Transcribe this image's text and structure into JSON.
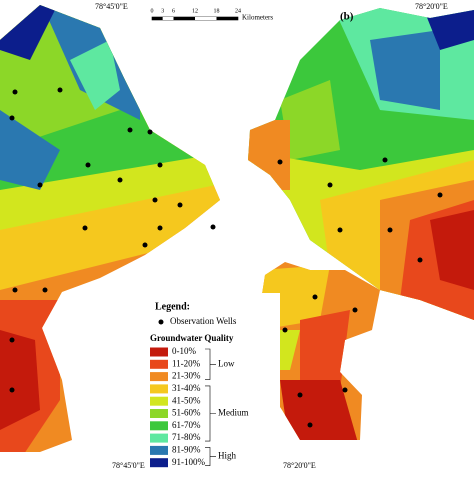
{
  "panel_label": "(b)",
  "coordinate_labels": [
    "78°45'0\"E",
    "78°20'0\"E",
    "78°45'0\"E",
    "78°20'0\"E"
  ],
  "scale_bar": {
    "ticks": [
      0,
      3,
      6,
      12,
      18,
      24
    ],
    "unit": "Kilometers"
  },
  "legend": {
    "title": "Legend:",
    "wells": "Observation Wells",
    "quality_title": "Groundwater Quality",
    "classes": [
      {
        "label": "0-10%",
        "color": "#c41a0c"
      },
      {
        "label": "11-20%",
        "color": "#e8481c"
      },
      {
        "label": "21-30%",
        "color": "#f08a22"
      },
      {
        "label": "31-40%",
        "color": "#f5c81e"
      },
      {
        "label": "41-50%",
        "color": "#d2e61e"
      },
      {
        "label": "51-60%",
        "color": "#8cd728"
      },
      {
        "label": "61-70%",
        "color": "#3cc83c"
      },
      {
        "label": "71-80%",
        "color": "#5ee8a0"
      },
      {
        "label": "81-90%",
        "color": "#2a78b0"
      },
      {
        "label": "91-100%",
        "color": "#0c1e8c"
      }
    ],
    "groups": [
      "Low",
      "Medium",
      "High"
    ]
  }
}
